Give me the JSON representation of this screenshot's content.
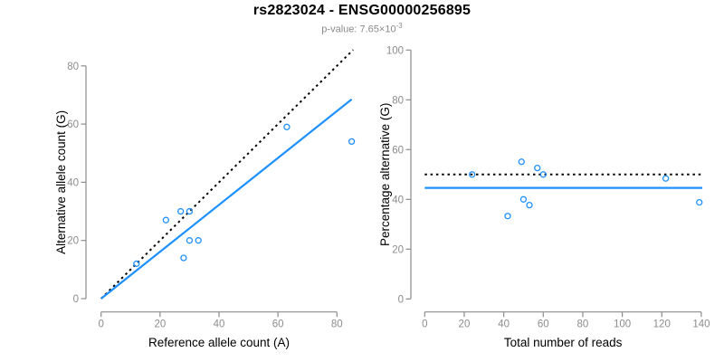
{
  "title": "rs2823024 - ENSG00000256895",
  "subtitle": {
    "base": "p-value: 7.65×10",
    "exponent": "-3"
  },
  "colors": {
    "accent": "#1E90FF",
    "identity_line": "#000000",
    "axis": "#8C8C8C",
    "label_text": "#000000",
    "subtitle_text": "#8A8A8A"
  },
  "chart_data": [
    {
      "type": "scatter",
      "panel": "left",
      "xlabel": "Reference allele count (A)",
      "ylabel": "Alternative allele count (G)",
      "xlim": [
        0,
        85
      ],
      "ylim": [
        0,
        85
      ],
      "xticks": [
        0,
        20,
        40,
        60,
        80
      ],
      "yticks": [
        0,
        20,
        40,
        60,
        80
      ],
      "grid": false,
      "legend": "none",
      "marker": "open-circle",
      "points": [
        [
          12,
          12
        ],
        [
          22,
          27
        ],
        [
          27,
          30
        ],
        [
          30,
          30
        ],
        [
          28,
          14
        ],
        [
          30,
          20
        ],
        [
          33,
          20
        ],
        [
          63,
          59
        ],
        [
          85,
          54
        ]
      ],
      "lines": [
        {
          "name": "identity-line",
          "style": "dotted",
          "color": "#000000",
          "slope": 1,
          "intercept": 0,
          "x_range": [
            0,
            85.5
          ]
        },
        {
          "name": "fit-line",
          "style": "solid",
          "color": "#1E90FF",
          "slope": 0.806,
          "intercept": 0,
          "x_range": [
            0,
            85
          ]
        }
      ]
    },
    {
      "type": "scatter",
      "panel": "right",
      "xlabel": "Total number of reads",
      "ylabel": "Percentage alternative (G)",
      "xlim": [
        0,
        140
      ],
      "ylim": [
        0,
        100
      ],
      "xticks": [
        0,
        20,
        40,
        60,
        80,
        100,
        120,
        140
      ],
      "yticks": [
        0,
        20,
        40,
        60,
        80,
        100
      ],
      "grid": false,
      "legend": "none",
      "marker": "open-circle",
      "points": [
        [
          24,
          50
        ],
        [
          49,
          55.1
        ],
        [
          57,
          52.6
        ],
        [
          60,
          50
        ],
        [
          42,
          33.3
        ],
        [
          50,
          40
        ],
        [
          53,
          37.7
        ],
        [
          122,
          48.4
        ],
        [
          139,
          38.8
        ]
      ],
      "lines": [
        {
          "name": "expected-50pct-line",
          "style": "dotted",
          "color": "#000000",
          "slope": 0,
          "intercept": 50,
          "x_range": [
            0,
            140.5
          ]
        },
        {
          "name": "mean-percentage-line",
          "style": "solid",
          "color": "#1E90FF",
          "slope": 0,
          "intercept": 44.6,
          "x_range": [
            0,
            140.5
          ]
        }
      ]
    }
  ]
}
